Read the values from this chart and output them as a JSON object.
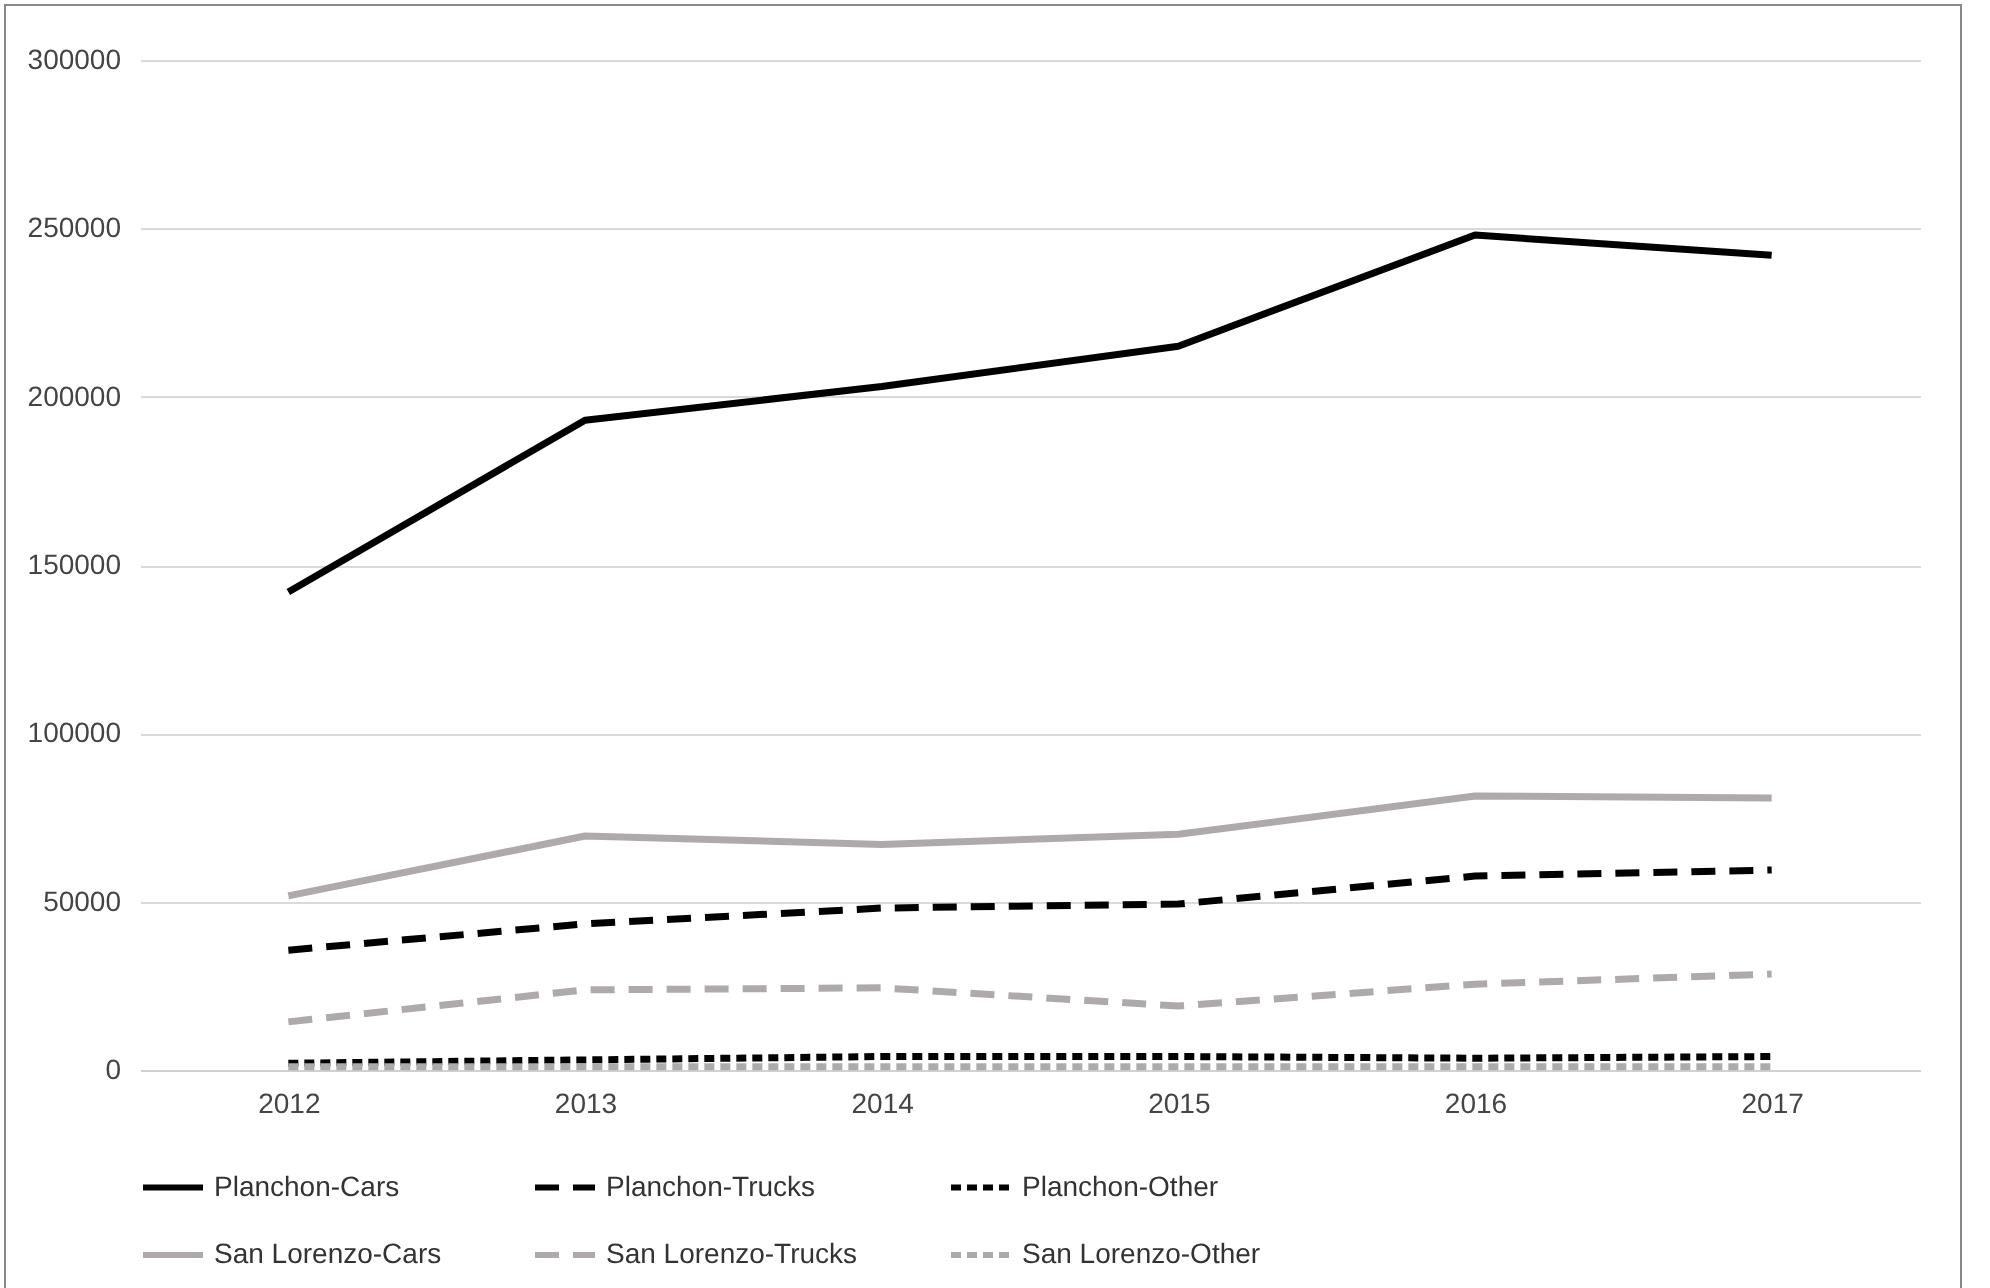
{
  "chart_data": {
    "type": "line",
    "categories": [
      "2012",
      "2013",
      "2014",
      "2015",
      "2016",
      "2017"
    ],
    "series": [
      {
        "name": "Planchon-Cars",
        "color": "#000000",
        "line_style": "solid",
        "values": [
          142000,
          193000,
          203000,
          215000,
          248000,
          242000
        ]
      },
      {
        "name": "Planchon-Trucks",
        "color": "#000000",
        "line_style": "dashed",
        "values": [
          35600,
          43400,
          48100,
          49300,
          57600,
          59400
        ]
      },
      {
        "name": "Planchon-Other",
        "color": "#000000",
        "line_style": "dotted",
        "values": [
          2000,
          3000,
          4000,
          4000,
          3500,
          4000
        ]
      },
      {
        "name": "San Lorenzo-Cars",
        "color": "#aeaaaa",
        "line_style": "solid",
        "values": [
          51700,
          69500,
          67000,
          70000,
          81400,
          80800
        ]
      },
      {
        "name": "San Lorenzo-Trucks",
        "color": "#aeaaaa",
        "line_style": "dashed",
        "values": [
          14300,
          23800,
          24400,
          19000,
          25500,
          28500
        ]
      },
      {
        "name": "San Lorenzo-Other",
        "color": "#aeaaaa",
        "line_style": "dotted",
        "values": [
          1000,
          1000,
          1000,
          1000,
          1000,
          1000
        ]
      }
    ],
    "ylim": [
      0,
      300000
    ],
    "yticks": [
      0,
      50000,
      100000,
      150000,
      200000,
      250000,
      300000
    ],
    "grid": "y",
    "legend": "bottom",
    "marker": "none"
  }
}
